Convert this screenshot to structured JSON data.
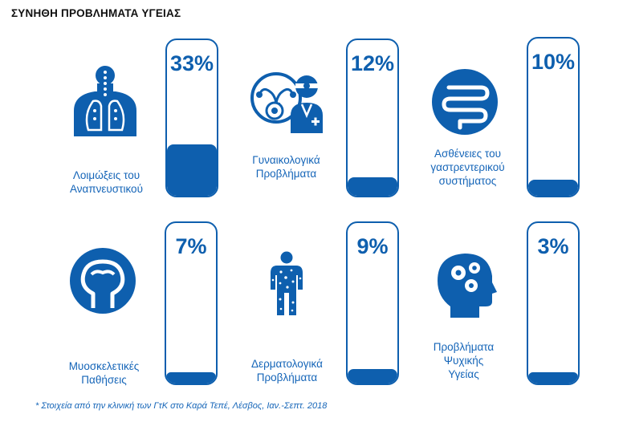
{
  "title": "ΣΥΝΗΘΗ ΠΡΟΒΛΗΜΑΤΑ ΥΓΕΙΑΣ",
  "footnote": "* Στοιχεία από την κλινική των ΓτΚ στο Καρά Τεπέ, Λέσβος, Ιαν.-Σεπτ. 2018",
  "colors": {
    "primary": "#0e5fae",
    "label": "#1565b8"
  },
  "chart_data": {
    "type": "bar",
    "title": "ΣΥΝΗΘΗ ΠΡΟΒΛΗΜΑΤΑ ΥΓΕΙΑΣ",
    "categories": [
      "Λοιμώξεις του Αναπνευστικού",
      "Γυναικολογικά Προβλήματα",
      "Ασθένειες του γαστρεντερικού συστήματος",
      "Μυοσκελετικές Παθήσεις",
      "Δερματολογικά Προβλήματα",
      "Προβλήματα Ψυχικής Υγείας"
    ],
    "values": [
      33,
      12,
      10,
      7,
      9,
      3
    ],
    "unit": "%",
    "ylim": [
      0,
      100
    ]
  },
  "items": [
    {
      "label": "Λοιμώξεις του\nΑναπνευστικού",
      "value": 33,
      "display": "33%",
      "icon": "lungs-icon"
    },
    {
      "label": "Γυναικολογικά\nΠροβλήματα",
      "value": 12,
      "display": "12%",
      "icon": "gynecology-icon"
    },
    {
      "label": "Ασθένειες του\nγαστρεντερικού\nσυστήματος",
      "value": 10,
      "display": "10%",
      "icon": "intestine-icon"
    },
    {
      "label": "Μυοσκελετικές\nΠαθήσεις",
      "value": 7,
      "display": "7%",
      "icon": "bone-joint-icon"
    },
    {
      "label": "Δερματολογικά\nΠροβλήματα",
      "value": 9,
      "display": "9%",
      "icon": "skin-body-icon"
    },
    {
      "label": "Προβλήματα\nΨυχικής\nΥγείας",
      "value": 3,
      "display": "3%",
      "icon": "mental-health-icon"
    }
  ]
}
